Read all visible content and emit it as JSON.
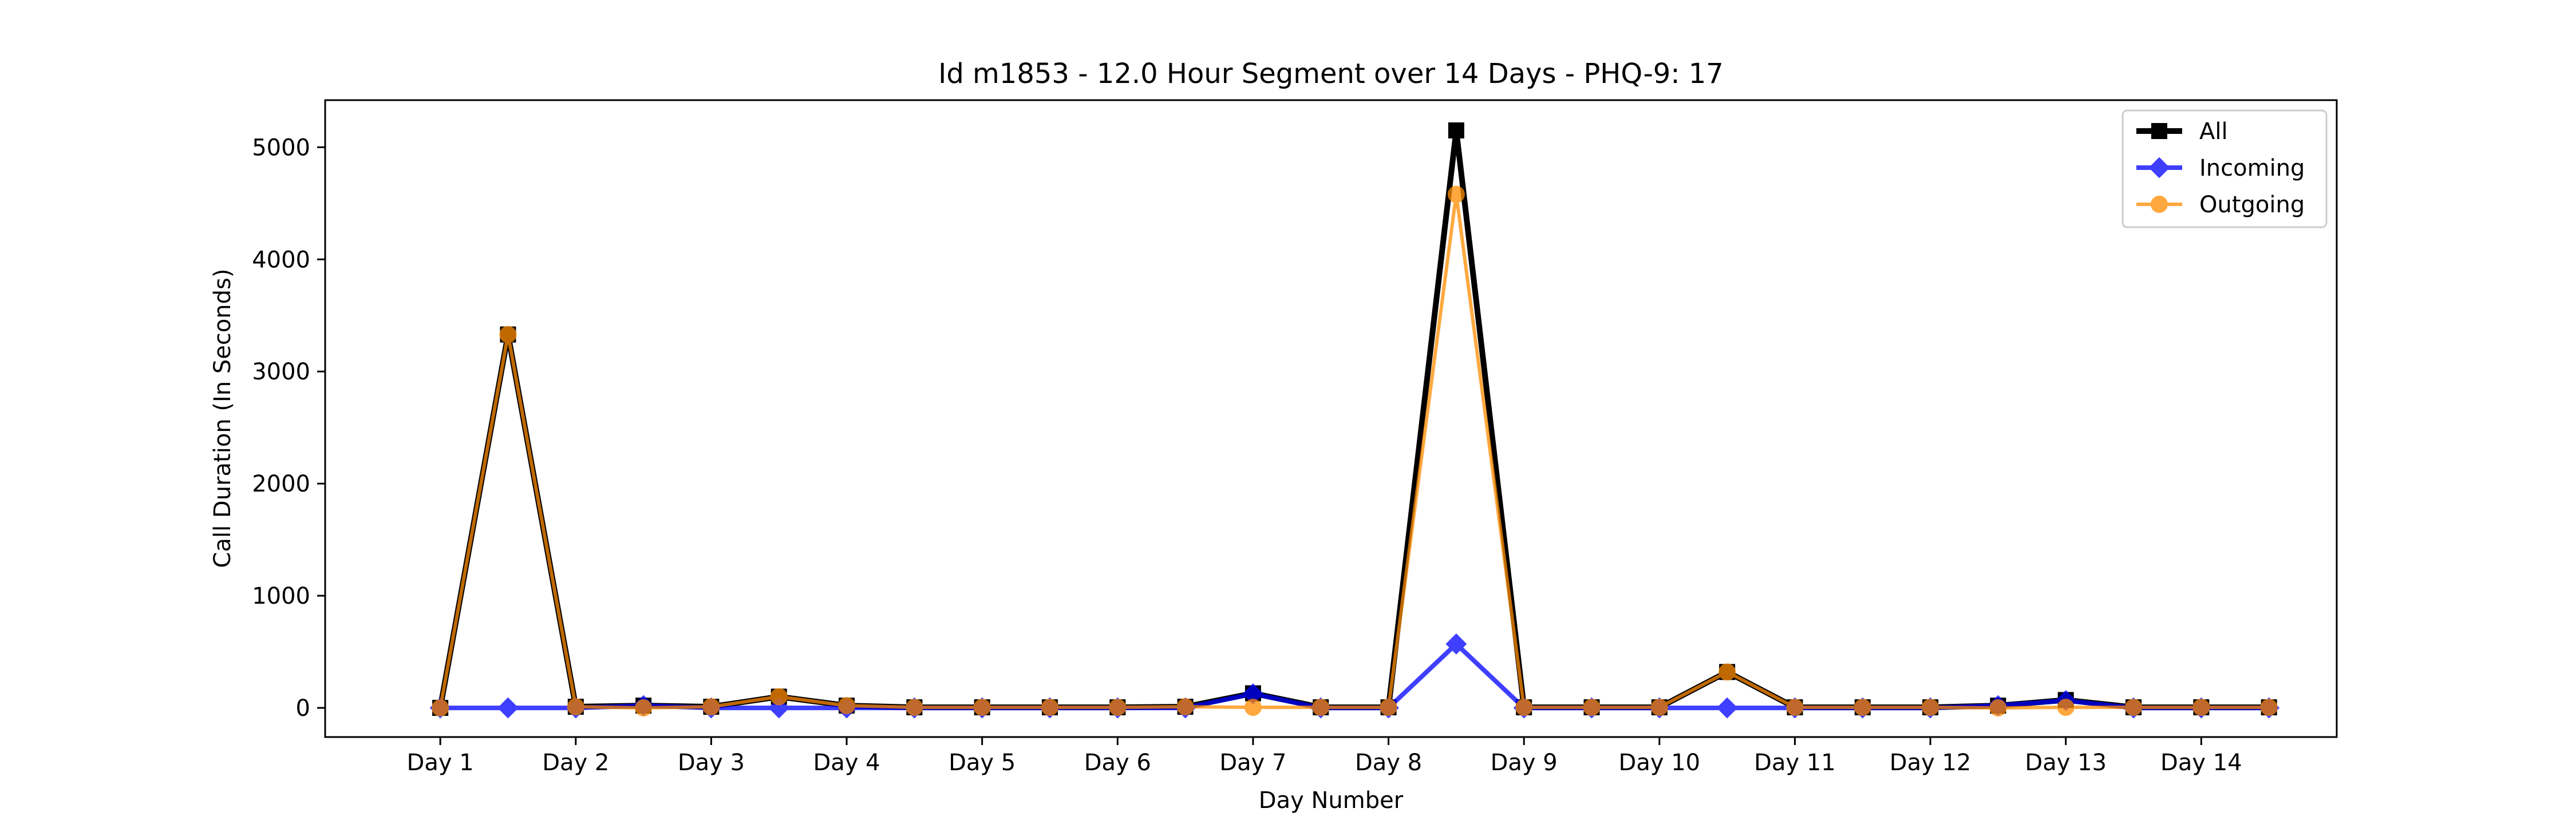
{
  "chart_data": {
    "type": "line",
    "title": "Id m1853 - 12.0 Hour Segment over 14 Days - PHQ-9: 17",
    "xlabel": "Day Number",
    "ylabel": "Call Duration (In Seconds)",
    "xlim": [
      0.15,
      15
    ],
    "ylim": [
      -260,
      5420
    ],
    "yticks": [
      0,
      1000,
      2000,
      3000,
      4000,
      5000
    ],
    "xticks": [
      {
        "x": 1,
        "label": "Day 1"
      },
      {
        "x": 2,
        "label": "Day 2"
      },
      {
        "x": 3,
        "label": "Day 3"
      },
      {
        "x": 4,
        "label": "Day 4"
      },
      {
        "x": 5,
        "label": "Day 5"
      },
      {
        "x": 6,
        "label": "Day 6"
      },
      {
        "x": 7,
        "label": "Day 7"
      },
      {
        "x": 8,
        "label": "Day 8"
      },
      {
        "x": 9,
        "label": "Day 9"
      },
      {
        "x": 10,
        "label": "Day 10"
      },
      {
        "x": 11,
        "label": "Day 11"
      },
      {
        "x": 12,
        "label": "Day 12"
      },
      {
        "x": 13,
        "label": "Day 13"
      },
      {
        "x": 14,
        "label": "Day 14"
      }
    ],
    "x": [
      1,
      1.5,
      2,
      2.5,
      3,
      3.5,
      4,
      4.5,
      5,
      5.5,
      6,
      6.5,
      7,
      7.5,
      8,
      8.5,
      9,
      9.5,
      10,
      10.5,
      11,
      11.5,
      12,
      12.5,
      13,
      13.5,
      14,
      14.5
    ],
    "series": [
      {
        "name": "All",
        "color": "#000000",
        "marker": "square",
        "values": [
          0,
          3330,
          10,
          20,
          10,
          100,
          20,
          5,
          5,
          5,
          5,
          10,
          130,
          5,
          5,
          5150,
          5,
          5,
          5,
          320,
          5,
          5,
          5,
          20,
          70,
          5,
          5,
          5
        ]
      },
      {
        "name": "Incoming",
        "color": "#0000ff",
        "marker": "diamond",
        "values": [
          0,
          0,
          0,
          20,
          0,
          0,
          0,
          0,
          0,
          0,
          0,
          0,
          125,
          0,
          0,
          570,
          0,
          0,
          0,
          0,
          0,
          0,
          0,
          20,
          65,
          0,
          0,
          0
        ]
      },
      {
        "name": "Outgoing",
        "color": "#ff8c00",
        "marker": "circle",
        "values": [
          0,
          3330,
          10,
          0,
          10,
          100,
          20,
          5,
          5,
          5,
          5,
          10,
          5,
          5,
          5,
          4580,
          5,
          5,
          5,
          320,
          5,
          5,
          5,
          0,
          5,
          5,
          5,
          5
        ]
      }
    ],
    "legend_position": "top-right",
    "grid": false
  }
}
